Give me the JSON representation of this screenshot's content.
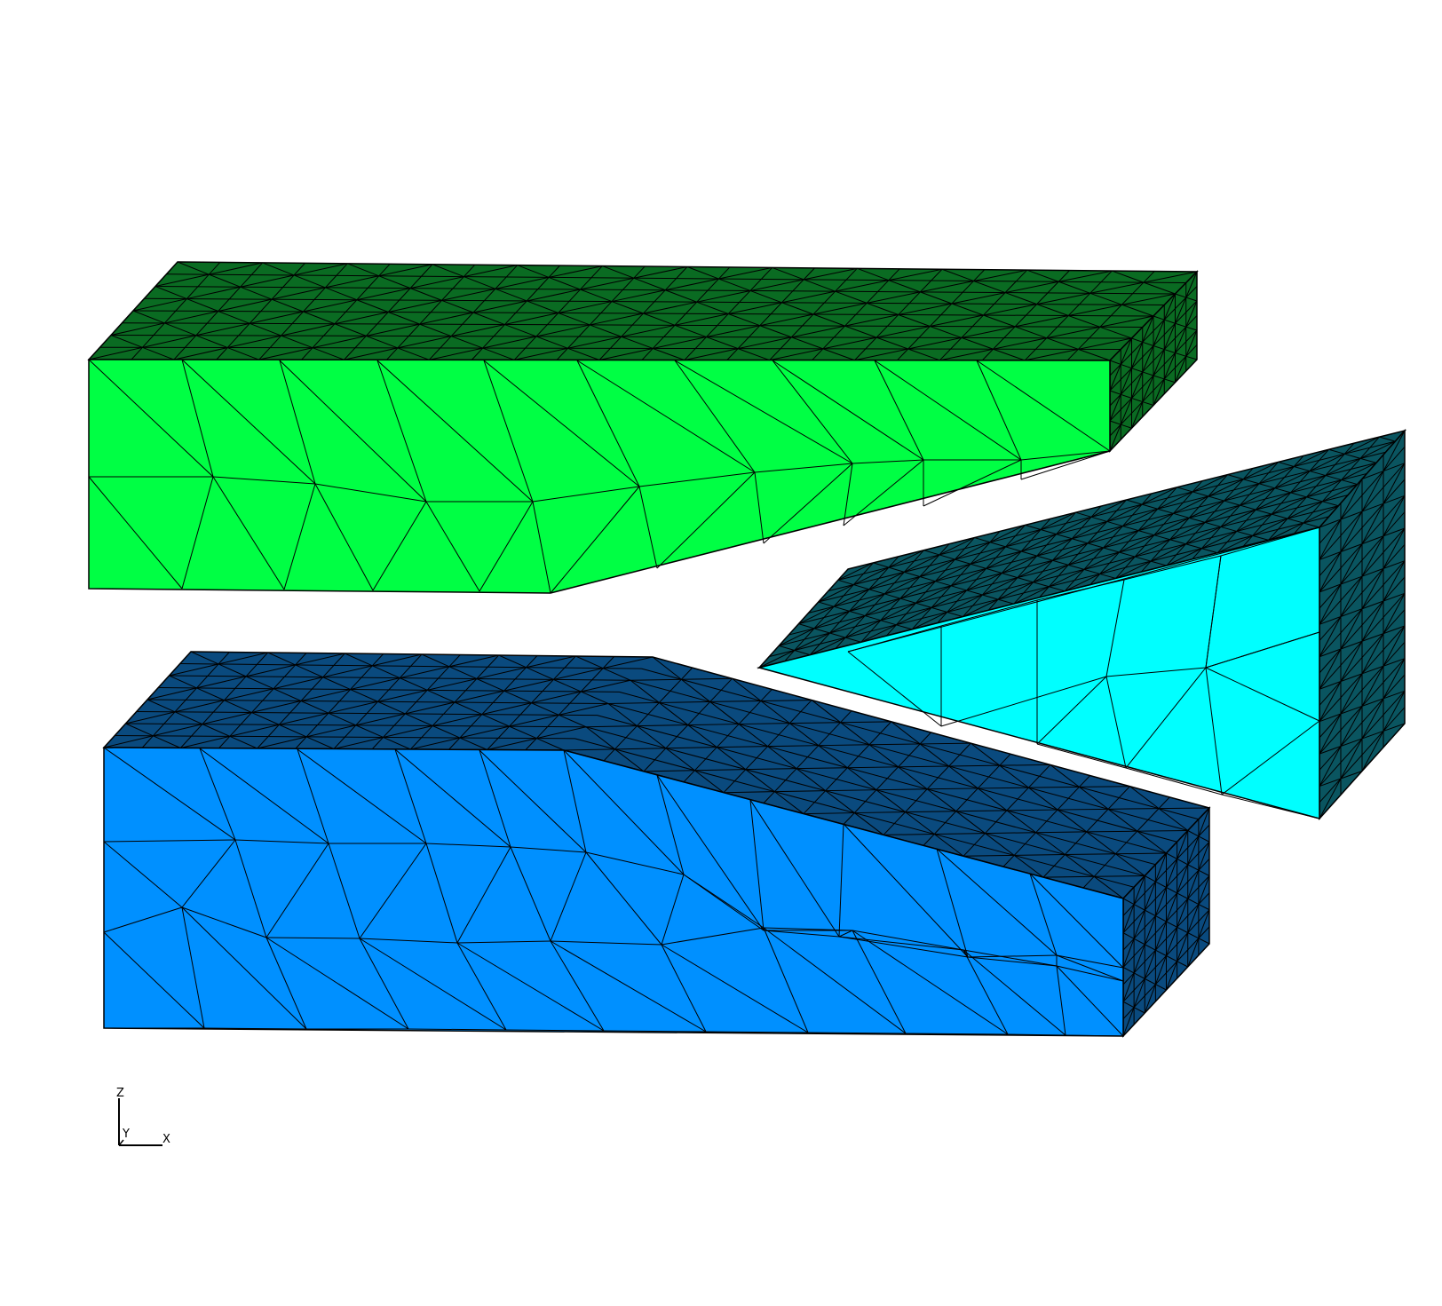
{
  "scene": {
    "background": "#ffffff",
    "edge_color": "#000000",
    "blocks": [
      {
        "id": "green-block",
        "front_color": "#00ff44",
        "top_color": "#0a6b22",
        "side_color": "#0a6b22"
      },
      {
        "id": "blue-block",
        "front_color": "#0090ff",
        "top_color": "#0a4a7e",
        "side_color": "#0a4a7e"
      },
      {
        "id": "cyan-wedge",
        "front_color": "#00ffff",
        "top_color": "#0a5560",
        "side_color": "#0a5560"
      }
    ]
  },
  "axis_triad": {
    "z_label": "Z",
    "y_label": "Y",
    "x_label": "X"
  }
}
